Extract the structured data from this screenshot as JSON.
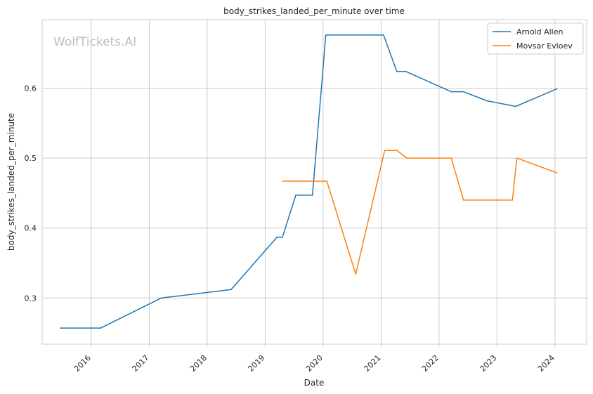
{
  "chart_data": {
    "type": "line",
    "title": "body_strikes_landed_per_minute over time",
    "xlabel": "Date",
    "ylabel": "body_strikes_landed_per_minute",
    "watermark": "WolfTickets.AI",
    "x_ticks": [
      "2016",
      "2017",
      "2018",
      "2019",
      "2020",
      "2021",
      "2022",
      "2023",
      "2024"
    ],
    "y_ticks": [
      "0.3",
      "0.4",
      "0.5",
      "0.6"
    ],
    "xlim": [
      "2015-02-26",
      "2024-07-19"
    ],
    "ylim": [
      0.234,
      0.698
    ],
    "grid": true,
    "legend_position": "top-right",
    "series": [
      {
        "name": "Arnold Allen",
        "color": "#1f77b4",
        "points": [
          [
            "2015-06-20",
            0.257
          ],
          [
            "2016-03-01",
            0.257
          ],
          [
            "2017-03-18",
            0.3
          ],
          [
            "2018-06-01",
            0.312
          ],
          [
            "2019-03-16",
            0.387
          ],
          [
            "2019-04-20",
            0.387
          ],
          [
            "2019-07-13",
            0.447
          ],
          [
            "2019-10-26",
            0.447
          ],
          [
            "2020-01-18",
            0.676
          ],
          [
            "2021-01-16",
            0.676
          ],
          [
            "2021-04-10",
            0.624
          ],
          [
            "2021-06-05",
            0.624
          ],
          [
            "2022-03-19",
            0.595
          ],
          [
            "2022-06-04",
            0.595
          ],
          [
            "2022-10-29",
            0.582
          ],
          [
            "2023-04-29",
            0.574
          ],
          [
            "2024-01-13",
            0.599
          ]
        ]
      },
      {
        "name": "Movsar Evloev",
        "color": "#ff7f0e",
        "points": [
          [
            "2019-04-20",
            0.467
          ],
          [
            "2020-01-25",
            0.467
          ],
          [
            "2020-07-25",
            0.334
          ],
          [
            "2021-01-23",
            0.511
          ],
          [
            "2021-04-10",
            0.511
          ],
          [
            "2021-06-12",
            0.5
          ],
          [
            "2022-03-19",
            0.5
          ],
          [
            "2022-06-04",
            0.44
          ],
          [
            "2023-04-08",
            0.44
          ],
          [
            "2023-05-06",
            0.5
          ],
          [
            "2024-01-13",
            0.479
          ]
        ]
      }
    ]
  }
}
